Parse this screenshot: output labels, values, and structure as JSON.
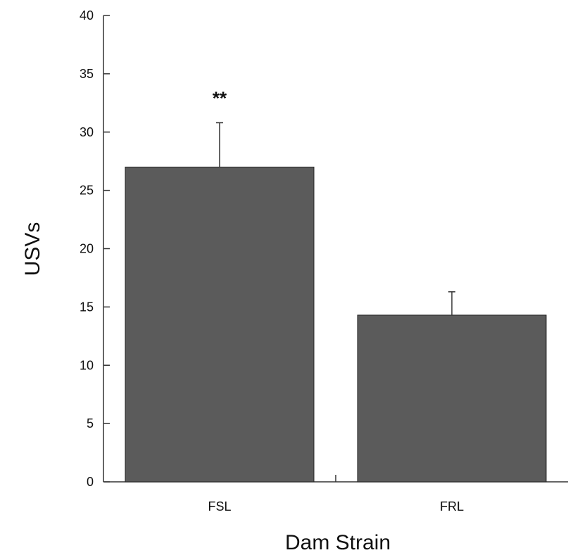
{
  "chart_data": {
    "type": "bar",
    "categories": [
      "FSL",
      "FRL"
    ],
    "values": [
      27.0,
      14.3
    ],
    "errors": [
      3.8,
      2.0
    ],
    "annotations": [
      "**",
      ""
    ],
    "title": "",
    "xlabel": "Dam Strain",
    "ylabel": "USVs",
    "ylim": [
      0,
      40
    ],
    "yticks": [
      0,
      5,
      10,
      15,
      20,
      25,
      30,
      35,
      40
    ],
    "bar_color": "#5b5b5b",
    "grid": false,
    "legend": "none"
  }
}
